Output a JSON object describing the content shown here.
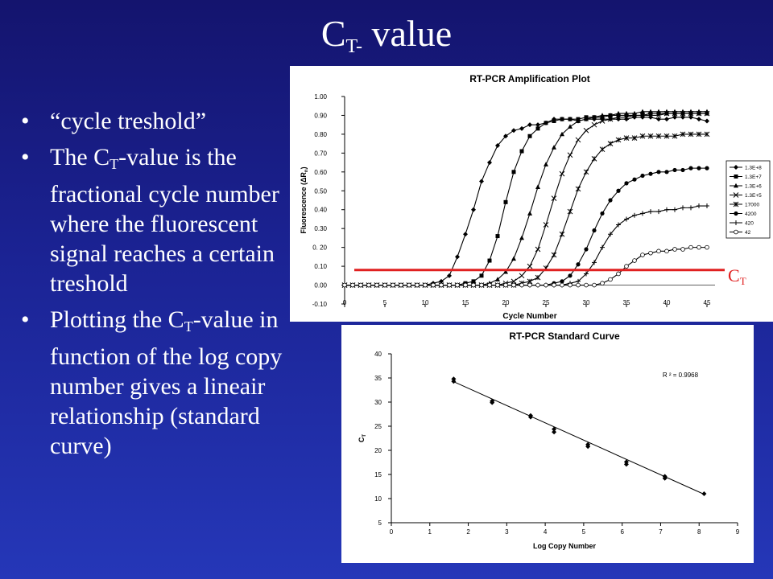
{
  "slide": {
    "title_main": "C",
    "title_sub": "T-",
    "title_rest": " value",
    "bullets": [
      {
        "parts": [
          "“cycle treshold”"
        ]
      },
      {
        "parts": [
          "The C",
          "T",
          "-value is the fractional cycle number where the fluorescent signal reaches a certain treshold"
        ]
      },
      {
        "parts": [
          "Plotting the C",
          "T",
          "-value in function of the log copy number gives a lineair relationship (standard curve)"
        ]
      }
    ],
    "ct_label_main": "C",
    "ct_label_sub": "T",
    "colors": {
      "background": "#1b2394",
      "text": "#ffffff",
      "threshold": "#e02020"
    }
  },
  "chart_data": [
    {
      "type": "line",
      "title": "RT-PCR Amplification Plot",
      "xlabel": "Cycle Number",
      "ylabel_main": "Fluorescence (ΔR",
      "ylabel_sub": "n",
      "ylabel_end": ")",
      "xlim": [
        0,
        46
      ],
      "ylim": [
        -0.1,
        1.0
      ],
      "xticks": [
        0,
        5,
        10,
        15,
        20,
        25,
        30,
        35,
        40,
        45
      ],
      "xtick_labels": [
        "0",
        "5",
        "10",
        "15",
        "20",
        "25",
        "30",
        "35",
        "40",
        "45"
      ],
      "yticks": [
        -0.1,
        0.0,
        0.1,
        0.2,
        0.3,
        0.4,
        0.5,
        0.6,
        0.7,
        0.8,
        0.9,
        1.0
      ],
      "ytick_labels": [
        "-0.10",
        "0.00",
        "0.10",
        "0. 20",
        "0.30",
        "0.40",
        "0.50",
        "0.60",
        "0.70",
        "0.80",
        "0.90",
        "1.00"
      ],
      "threshold": 0.08,
      "legend_position": "right",
      "series": [
        {
          "name": "1.3E+8",
          "marker": "diamond",
          "values": [
            0,
            0,
            0,
            0,
            0,
            0,
            0,
            0,
            0,
            0,
            0,
            0.01,
            0.02,
            0.05,
            0.15,
            0.27,
            0.4,
            0.55,
            0.65,
            0.74,
            0.79,
            0.82,
            0.83,
            0.85,
            0.85,
            0.86,
            0.88,
            0.88,
            0.88,
            0.87,
            0.88,
            0.88,
            0.88,
            0.88,
            0.88,
            0.88,
            0.89,
            0.89,
            0.89,
            0.88,
            0.88,
            0.89,
            0.89,
            0.89,
            0.88,
            0.87
          ]
        },
        {
          "name": "1.3E+7",
          "marker": "square",
          "values": [
            0,
            0,
            0,
            0,
            0,
            0,
            0,
            0,
            0,
            0,
            0,
            0,
            0,
            0,
            0,
            0.01,
            0.02,
            0.05,
            0.13,
            0.26,
            0.44,
            0.6,
            0.71,
            0.79,
            0.83,
            0.86,
            0.87,
            0.88,
            0.88,
            0.88,
            0.89,
            0.89,
            0.89,
            0.9,
            0.9,
            0.9,
            0.9,
            0.9,
            0.91,
            0.91,
            0.91,
            0.91,
            0.91,
            0.91,
            0.91,
            0.91
          ]
        },
        {
          "name": "1.3E+6",
          "marker": "triangle",
          "values": [
            0,
            0,
            0,
            0,
            0,
            0,
            0,
            0,
            0,
            0,
            0,
            0,
            0,
            0,
            0,
            0,
            0,
            0,
            0.01,
            0.03,
            0.07,
            0.14,
            0.25,
            0.38,
            0.52,
            0.64,
            0.73,
            0.8,
            0.84,
            0.87,
            0.88,
            0.89,
            0.9,
            0.9,
            0.91,
            0.91,
            0.91,
            0.92,
            0.92,
            0.92,
            0.92,
            0.92,
            0.92,
            0.92,
            0.92,
            0.92
          ]
        },
        {
          "name": "1.3E+5",
          "marker": "xcross",
          "values": [
            0,
            0,
            0,
            0,
            0,
            0,
            0,
            0,
            0,
            0,
            0,
            0,
            0,
            0,
            0,
            0,
            0,
            0,
            0,
            0,
            0.01,
            0.02,
            0.05,
            0.1,
            0.19,
            0.32,
            0.46,
            0.59,
            0.69,
            0.77,
            0.82,
            0.85,
            0.87,
            0.88,
            0.89,
            0.89,
            0.9,
            0.9,
            0.9,
            0.9,
            0.91,
            0.91,
            0.91,
            0.91,
            0.91,
            0.91
          ]
        },
        {
          "name": "17000",
          "marker": "star",
          "values": [
            0,
            0,
            0,
            0,
            0,
            0,
            0,
            0,
            0,
            0,
            0,
            0,
            0,
            0,
            0,
            0,
            0,
            0,
            0,
            0,
            0,
            0,
            0.01,
            0.02,
            0.04,
            0.09,
            0.16,
            0.27,
            0.39,
            0.51,
            0.6,
            0.67,
            0.72,
            0.75,
            0.77,
            0.78,
            0.78,
            0.79,
            0.79,
            0.79,
            0.79,
            0.79,
            0.8,
            0.8,
            0.8,
            0.8
          ]
        },
        {
          "name": "4200",
          "marker": "circle",
          "values": [
            0,
            0,
            0,
            0,
            0,
            0,
            0,
            0,
            0,
            0,
            0,
            0,
            0,
            0,
            0,
            0,
            0,
            0,
            0,
            0,
            0,
            0,
            0,
            0,
            0,
            0,
            0.01,
            0.02,
            0.05,
            0.11,
            0.19,
            0.29,
            0.38,
            0.45,
            0.5,
            0.54,
            0.56,
            0.58,
            0.59,
            0.6,
            0.6,
            0.61,
            0.61,
            0.62,
            0.62,
            0.62
          ]
        },
        {
          "name": "420",
          "marker": "plus",
          "values": [
            0,
            0,
            0,
            0,
            0,
            0,
            0,
            0,
            0,
            0,
            0,
            0,
            0,
            0,
            0,
            0,
            0,
            0,
            0,
            0,
            0,
            0,
            0,
            0,
            0,
            0,
            0,
            0,
            0.01,
            0.02,
            0.06,
            0.12,
            0.2,
            0.27,
            0.32,
            0.35,
            0.37,
            0.38,
            0.39,
            0.39,
            0.4,
            0.4,
            0.41,
            0.41,
            0.42,
            0.42
          ]
        },
        {
          "name": "42",
          "marker": "ring",
          "values": [
            0,
            0,
            0,
            0,
            0,
            0,
            0,
            0,
            0,
            0,
            0,
            0,
            0,
            0,
            0,
            0,
            0,
            0,
            0,
            0,
            0,
            0,
            0,
            0,
            0,
            0,
            0,
            0,
            0,
            0,
            0,
            0,
            0.01,
            0.03,
            0.06,
            0.1,
            0.13,
            0.16,
            0.17,
            0.18,
            0.18,
            0.19,
            0.19,
            0.2,
            0.2,
            0.2
          ]
        }
      ]
    },
    {
      "type": "scatter",
      "title": "RT-PCR Standard Curve",
      "xlabel": "Log Copy Number",
      "ylabel_main": "C",
      "ylabel_sub": "T",
      "xlim": [
        0,
        9
      ],
      "ylim": [
        5,
        40
      ],
      "xticks": [
        0,
        1,
        2,
        3,
        4,
        5,
        6,
        7,
        8,
        9
      ],
      "xtick_labels": [
        "0",
        "1",
        "2",
        "3",
        "4",
        "5",
        "6",
        "7",
        "8",
        "9"
      ],
      "yticks": [
        5,
        10,
        15,
        20,
        25,
        30,
        35,
        40
      ],
      "ytick_labels": [
        "5",
        "10",
        "15",
        "20",
        "25",
        "30",
        "35",
        "40"
      ],
      "annotation": "R ² = 0.9968",
      "fit_line": {
        "x": [
          1.6,
          8.1
        ],
        "y": [
          34.3,
          11.0
        ]
      },
      "points": [
        {
          "x": 1.62,
          "y": 34.8
        },
        {
          "x": 1.62,
          "y": 34.3
        },
        {
          "x": 2.62,
          "y": 30.2
        },
        {
          "x": 2.62,
          "y": 29.9
        },
        {
          "x": 3.62,
          "y": 27.2
        },
        {
          "x": 3.62,
          "y": 26.9
        },
        {
          "x": 4.23,
          "y": 24.4
        },
        {
          "x": 4.23,
          "y": 23.8
        },
        {
          "x": 5.11,
          "y": 21.2
        },
        {
          "x": 5.11,
          "y": 20.8
        },
        {
          "x": 6.11,
          "y": 17.6
        },
        {
          "x": 6.11,
          "y": 17.1
        },
        {
          "x": 7.11,
          "y": 14.6
        },
        {
          "x": 7.11,
          "y": 14.2
        },
        {
          "x": 8.13,
          "y": 11.0
        }
      ]
    }
  ]
}
